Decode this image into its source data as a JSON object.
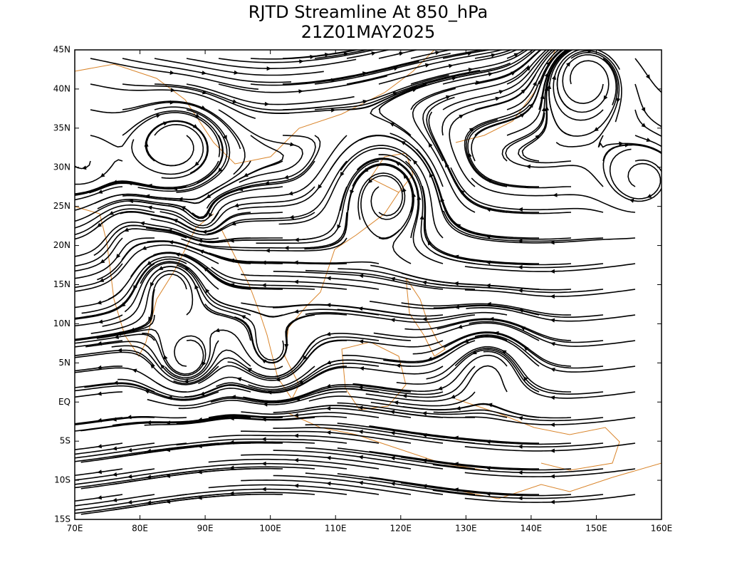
{
  "title": "RJTD Streamline At 850_hPa",
  "subtitle": "21Z01MAY2025",
  "map": {
    "xlim": [
      70,
      160
    ],
    "ylim": [
      -15,
      45
    ],
    "xticks": [
      {
        "value": 70,
        "label": "70E"
      },
      {
        "value": 80,
        "label": "80E"
      },
      {
        "value": 90,
        "label": "90E"
      },
      {
        "value": 100,
        "label": "100E"
      },
      {
        "value": 110,
        "label": "110E"
      },
      {
        "value": 120,
        "label": "120E"
      },
      {
        "value": 130,
        "label": "130E"
      },
      {
        "value": 140,
        "label": "140E"
      },
      {
        "value": 150,
        "label": "150E"
      },
      {
        "value": 160,
        "label": "160E"
      }
    ],
    "yticks": [
      {
        "value": 45,
        "label": "45N"
      },
      {
        "value": 40,
        "label": "40N"
      },
      {
        "value": 35,
        "label": "35N"
      },
      {
        "value": 30,
        "label": "30N"
      },
      {
        "value": 25,
        "label": "25N"
      },
      {
        "value": 20,
        "label": "20N"
      },
      {
        "value": 15,
        "label": "15N"
      },
      {
        "value": 10,
        "label": "10N"
      },
      {
        "value": 5,
        "label": "5N"
      },
      {
        "value": 0,
        "label": "EQ"
      },
      {
        "value": -5,
        "label": "5S"
      },
      {
        "value": -10,
        "label": "10S"
      },
      {
        "value": -15,
        "label": "15S"
      }
    ]
  }
}
